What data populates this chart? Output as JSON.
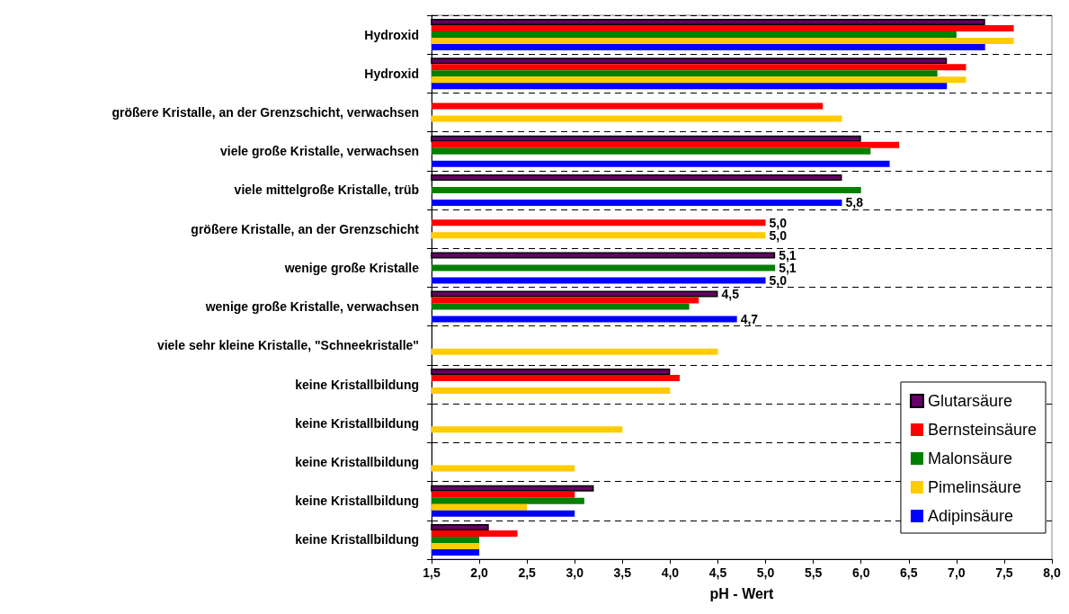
{
  "chart_data": {
    "type": "bar",
    "orientation": "horizontal",
    "xlabel": "pH - Wert",
    "categories": [
      "Hydroxid",
      "Hydroxid",
      "größere Kristalle, an der Grenzschicht, verwachsen",
      "viele große Kristalle, verwachsen",
      "viele mittelgroße Kristalle, trüb",
      "größere Kristalle, an der Grenzschicht",
      "wenige große Kristalle",
      "wenige große Kristalle, verwachsen",
      "viele sehr kleine Kristalle, \"Schneekristalle\"",
      "keine Kristallbildung",
      "keine Kristallbildung",
      "keine Kristallbildung",
      "keine Kristallbildung",
      "keine Kristallbildung"
    ],
    "series": [
      {
        "name": "Glutarsäure",
        "color": "#660066",
        "values": [
          7.3,
          6.9,
          null,
          6.0,
          5.8,
          null,
          5.1,
          4.5,
          null,
          4.0,
          null,
          null,
          3.2,
          2.1
        ],
        "value_labels": [
          null,
          null,
          null,
          null,
          null,
          null,
          "5,1",
          "4,5",
          null,
          null,
          null,
          null,
          null,
          null
        ]
      },
      {
        "name": "Bernsteinsäure",
        "color": "#ff0000",
        "values": [
          7.6,
          7.1,
          5.6,
          6.4,
          null,
          5.0,
          null,
          4.3,
          null,
          4.1,
          null,
          null,
          3.0,
          2.4
        ],
        "value_labels": [
          null,
          null,
          null,
          null,
          null,
          "5,0",
          null,
          null,
          null,
          null,
          null,
          null,
          null,
          null
        ]
      },
      {
        "name": "Malonsäure",
        "color": "#008000",
        "values": [
          7.0,
          6.8,
          null,
          6.1,
          6.0,
          null,
          5.1,
          4.2,
          null,
          null,
          null,
          null,
          3.1,
          2.0
        ],
        "value_labels": [
          null,
          null,
          null,
          null,
          null,
          null,
          "5,1",
          null,
          null,
          null,
          null,
          null,
          null,
          null
        ]
      },
      {
        "name": "Pimelinsäure",
        "color": "#ffcc00",
        "values": [
          7.6,
          7.1,
          5.8,
          null,
          null,
          5.0,
          null,
          null,
          4.5,
          4.0,
          3.5,
          3.0,
          2.5,
          2.0
        ],
        "value_labels": [
          null,
          null,
          null,
          null,
          null,
          "5,0",
          null,
          null,
          null,
          null,
          null,
          null,
          null,
          null
        ]
      },
      {
        "name": "Adipinsäure",
        "color": "#0000ff",
        "values": [
          7.3,
          6.9,
          null,
          6.3,
          5.8,
          null,
          5.0,
          4.7,
          null,
          null,
          null,
          null,
          3.0,
          2.0
        ],
        "value_labels": [
          null,
          null,
          null,
          null,
          "5,8",
          null,
          "5,0",
          "4,7",
          null,
          null,
          null,
          null,
          null,
          null
        ]
      }
    ],
    "xlim": [
      1.5,
      8.0
    ],
    "xticks": [
      {
        "value": 1.5,
        "label": "1,5"
      },
      {
        "value": 2.0,
        "label": "2,0"
      },
      {
        "value": 2.5,
        "label": "2,5"
      },
      {
        "value": 3.0,
        "label": "3,0"
      },
      {
        "value": 3.5,
        "label": "3,5"
      },
      {
        "value": 4.0,
        "label": "4,0"
      },
      {
        "value": 4.5,
        "label": "4,5"
      },
      {
        "value": 5.0,
        "label": "5,0"
      },
      {
        "value": 5.5,
        "label": "5,5"
      },
      {
        "value": 6.0,
        "label": "6,0"
      },
      {
        "value": 6.5,
        "label": "6,5"
      },
      {
        "value": 7.0,
        "label": "7,0"
      },
      {
        "value": 7.5,
        "label": "7,5"
      },
      {
        "value": 8.0,
        "label": "8,0"
      }
    ],
    "grid": "y",
    "legend": "bottom right"
  }
}
